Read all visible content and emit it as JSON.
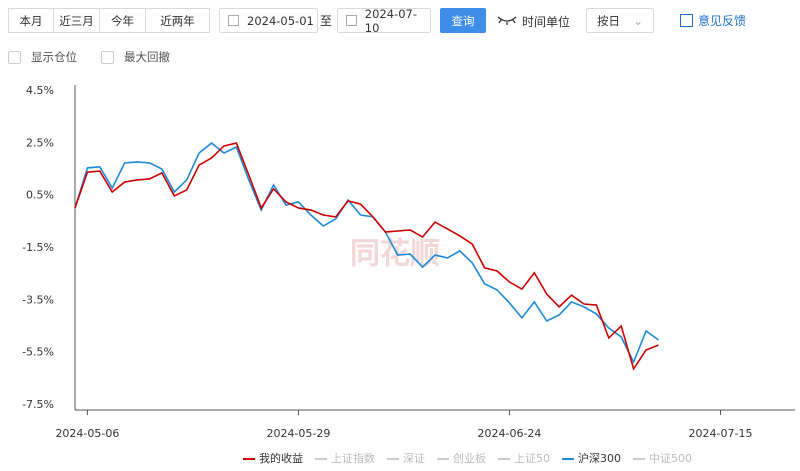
{
  "toolbar": {
    "ranges": [
      "本月",
      "近三月",
      "今年",
      "近两年"
    ],
    "active_range": 1,
    "start_date": "2024-05-01",
    "to": "至",
    "end_date": "2024-07-10",
    "query": "查询",
    "time_unit": "时间单位",
    "unit_select": "按日",
    "feedback": "意见反馈"
  },
  "options": [
    "显示仓位",
    "最大回撤"
  ],
  "watermark": "同花顺",
  "chart_data": {
    "type": "line",
    "categories": [
      null,
      "2024-05-06",
      null,
      null,
      null,
      null,
      null,
      null,
      null,
      null,
      null,
      null,
      null,
      null,
      null,
      null,
      null,
      null,
      "2024-05-29",
      null,
      null,
      null,
      null,
      null,
      null,
      null,
      null,
      null,
      null,
      null,
      null,
      null,
      null,
      null,
      null,
      "2024-06-24",
      null,
      null,
      null,
      null,
      null,
      null,
      null,
      null,
      null,
      null,
      null,
      null,
      null,
      null,
      null,
      null,
      "2024-07-15",
      null,
      null,
      null,
      null,
      null,
      null
    ],
    "ylim": [
      -7.5,
      4.5
    ],
    "yticks": [
      {
        "value": 4.5,
        "label": "4.5%"
      },
      {
        "value": 2.5,
        "label": "2.5%"
      },
      {
        "value": 0.5,
        "label": "0.5%"
      },
      {
        "value": -1.5,
        "label": "-1.5%"
      },
      {
        "value": -3.5,
        "label": "-3.5%"
      },
      {
        "value": -5.5,
        "label": "-5.5%"
      },
      {
        "value": -7.5,
        "label": "-7.5%"
      }
    ],
    "grid": false,
    "series": [
      {
        "name": "我的收益",
        "color": "#cc0000",
        "values": [
          0.03,
          1.4,
          1.44,
          0.64,
          1.02,
          1.1,
          1.14,
          1.37,
          0.49,
          0.72,
          1.67,
          1.94,
          2.4,
          2.51,
          1.29,
          0.03,
          0.76,
          0.26,
          0.03,
          -0.05,
          -0.24,
          -0.31,
          0.3,
          0.18,
          -0.31,
          -0.89,
          -0.85,
          -0.81,
          -1.08,
          -0.51,
          -0.77,
          -1.04,
          -1.35,
          -2.26,
          -2.38,
          -2.8,
          -3.07,
          -2.45,
          -3.26,
          -3.75,
          -3.3,
          -3.64,
          -3.68,
          -4.94,
          -4.48,
          -6.12,
          -5.4,
          -5.21,
          null,
          null,
          null,
          null,
          null,
          null,
          null,
          null,
          null,
          null,
          null
        ]
      },
      {
        "name": "上证指数",
        "color": "#cccccc",
        "hidden": true
      },
      {
        "name": "深证",
        "color": "#cccccc",
        "hidden": true
      },
      {
        "name": "创业板",
        "color": "#cccccc",
        "hidden": true
      },
      {
        "name": "上证50",
        "color": "#cccccc",
        "hidden": true
      },
      {
        "name": "沪深300",
        "color": "#1f8ad6",
        "values": [
          0.03,
          1.56,
          1.6,
          0.79,
          1.75,
          1.79,
          1.75,
          1.52,
          0.64,
          1.1,
          2.13,
          2.51,
          2.13,
          2.36,
          1.1,
          -0.05,
          0.91,
          0.14,
          0.26,
          -0.24,
          -0.66,
          -0.39,
          0.33,
          -0.24,
          -0.31,
          -0.89,
          -1.77,
          -1.73,
          -2.23,
          -1.77,
          -1.88,
          -1.61,
          -2.07,
          -2.87,
          -3.1,
          -3.6,
          -4.17,
          -3.56,
          -4.29,
          -4.06,
          -3.56,
          -3.75,
          -4.02,
          -4.56,
          -4.9,
          -5.86,
          -4.67,
          -5.01,
          null,
          null,
          null,
          null,
          null,
          null,
          null,
          null,
          null,
          null,
          null
        ]
      },
      {
        "name": "中证500",
        "color": "#cccccc",
        "hidden": true
      }
    ]
  }
}
